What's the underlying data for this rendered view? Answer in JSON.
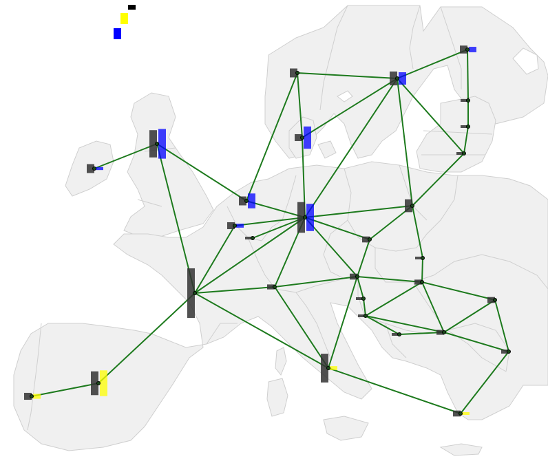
{
  "colors": {
    "land": "#f0f0f0",
    "border": "#cfcfcf",
    "transmission_line": "#1d7a1d",
    "bus_fill": "#1a4a1a",
    "bus_stroke": "#000000",
    "legend": [
      "#000000",
      "#ffff00",
      "#0000ff"
    ],
    "generation_bars": {
      "dark": "#333333",
      "yellow": "#ffff00",
      "blue": "#0000ff"
    }
  },
  "map": {
    "region": "Europe",
    "legend_colors": [
      "black",
      "yellow",
      "blue"
    ],
    "bar_color_order": [
      "dark",
      "yellow",
      "blue"
    ],
    "buses": [
      {
        "id": "IE",
        "bars": [
          0.18,
          0,
          0.06
        ]
      },
      {
        "id": "GB",
        "bars": [
          0.55,
          0,
          0.6
        ]
      },
      {
        "id": "NO",
        "bars": [
          0.18,
          0,
          0
        ]
      },
      {
        "id": "SE",
        "bars": [
          0.28,
          0,
          0.25
        ]
      },
      {
        "id": "FI",
        "bars": [
          0.16,
          0,
          0.11
        ]
      },
      {
        "id": "EE",
        "bars": [
          0.05,
          0,
          0
        ]
      },
      {
        "id": "LV",
        "bars": [
          0.05,
          0,
          0
        ]
      },
      {
        "id": "LT",
        "bars": [
          0.05,
          0,
          0
        ]
      },
      {
        "id": "DK",
        "bars": [
          0.14,
          0,
          0.45
        ]
      },
      {
        "id": "NL",
        "bars": [
          0.18,
          0,
          0.3
        ]
      },
      {
        "id": "BE",
        "bars": [
          0.14,
          0,
          0.08
        ]
      },
      {
        "id": "LU",
        "bars": [
          0.03,
          0,
          0
        ]
      },
      {
        "id": "DE",
        "bars": [
          0.62,
          0,
          0.55
        ]
      },
      {
        "id": "PL",
        "bars": [
          0.26,
          0,
          0
        ]
      },
      {
        "id": "CZ",
        "bars": [
          0.12,
          0,
          0
        ]
      },
      {
        "id": "SK",
        "bars": [
          0.05,
          0,
          0
        ]
      },
      {
        "id": "FR",
        "bars": [
          1.0,
          0,
          0
        ]
      },
      {
        "id": "CH",
        "bars": [
          0.1,
          0,
          0
        ]
      },
      {
        "id": "AT",
        "bars": [
          0.12,
          0,
          0
        ]
      },
      {
        "id": "HU",
        "bars": [
          0.1,
          0,
          0
        ]
      },
      {
        "id": "SI",
        "bars": [
          0.05,
          0,
          0
        ]
      },
      {
        "id": "HR",
        "bars": [
          0.05,
          0,
          0
        ]
      },
      {
        "id": "BA",
        "bars": [
          0.03,
          0,
          0
        ]
      },
      {
        "id": "RS",
        "bars": [
          0.1,
          0,
          0
        ]
      },
      {
        "id": "RO",
        "bars": [
          0.12,
          0,
          0
        ]
      },
      {
        "id": "BG",
        "bars": [
          0.08,
          0,
          0
        ]
      },
      {
        "id": "IT",
        "bars": [
          0.58,
          0.08,
          0
        ]
      },
      {
        "id": "ES",
        "bars": [
          0.48,
          0.52,
          0
        ]
      },
      {
        "id": "PT",
        "bars": [
          0.14,
          0.1,
          0
        ]
      },
      {
        "id": "GR",
        "bars": [
          0.12,
          0.04,
          0
        ]
      }
    ],
    "lines": [
      [
        "IE",
        "GB"
      ],
      [
        "GB",
        "FR"
      ],
      [
        "GB",
        "NL"
      ],
      [
        "NO",
        "SE"
      ],
      [
        "NO",
        "DK"
      ],
      [
        "NO",
        "NL"
      ],
      [
        "SE",
        "FI"
      ],
      [
        "SE",
        "DK"
      ],
      [
        "SE",
        "DE"
      ],
      [
        "SE",
        "PL"
      ],
      [
        "SE",
        "LT"
      ],
      [
        "FI",
        "EE"
      ],
      [
        "EE",
        "LV"
      ],
      [
        "LV",
        "LT"
      ],
      [
        "LT",
        "PL"
      ],
      [
        "DK",
        "DE"
      ],
      [
        "NL",
        "DE"
      ],
      [
        "BE",
        "DE"
      ],
      [
        "LU",
        "DE"
      ],
      [
        "FR",
        "DE"
      ],
      [
        "FR",
        "BE"
      ],
      [
        "FR",
        "CH"
      ],
      [
        "FR",
        "IT"
      ],
      [
        "FR",
        "ES"
      ],
      [
        "ES",
        "PT"
      ],
      [
        "DE",
        "PL"
      ],
      [
        "DE",
        "CZ"
      ],
      [
        "DE",
        "CH"
      ],
      [
        "DE",
        "AT"
      ],
      [
        "PL",
        "CZ"
      ],
      [
        "PL",
        "SK"
      ],
      [
        "CZ",
        "AT"
      ],
      [
        "SK",
        "HU"
      ],
      [
        "CH",
        "AT"
      ],
      [
        "CH",
        "IT"
      ],
      [
        "AT",
        "IT"
      ],
      [
        "AT",
        "HU"
      ],
      [
        "AT",
        "SI"
      ],
      [
        "HU",
        "RO"
      ],
      [
        "HU",
        "RS"
      ],
      [
        "HU",
        "HR"
      ],
      [
        "SI",
        "HR"
      ],
      [
        "HR",
        "RS"
      ],
      [
        "HR",
        "BA"
      ],
      [
        "BA",
        "RS"
      ],
      [
        "RS",
        "RO"
      ],
      [
        "RS",
        "BG"
      ],
      [
        "RO",
        "BG"
      ],
      [
        "BG",
        "GR"
      ],
      [
        "IT",
        "GR"
      ]
    ]
  }
}
